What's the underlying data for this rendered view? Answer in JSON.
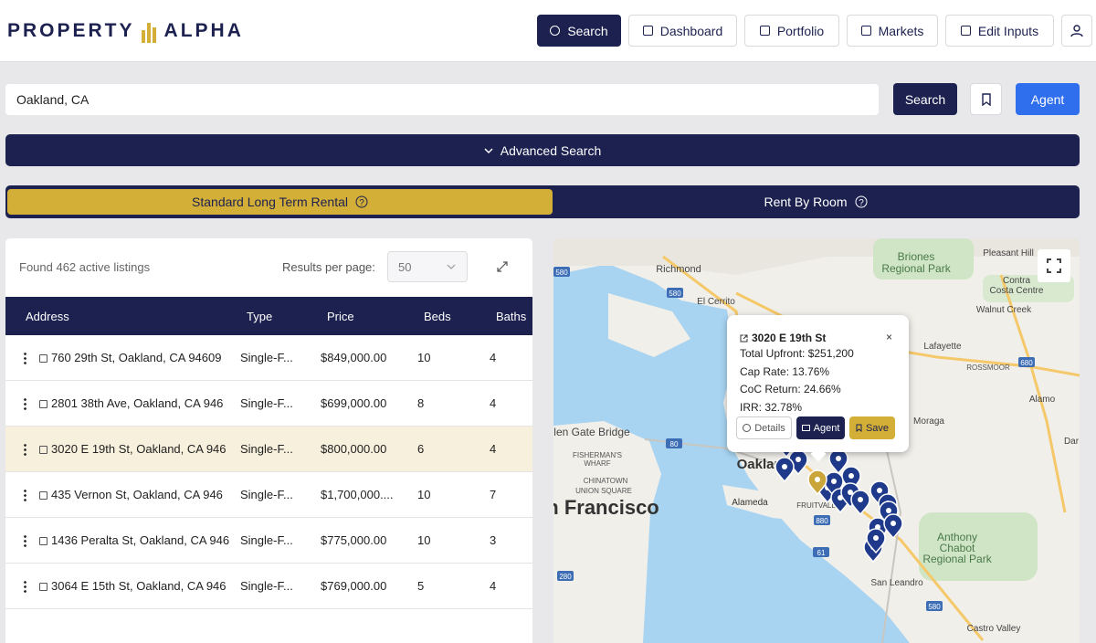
{
  "header": {
    "logo_left": "PROPERTY",
    "logo_right": "ALPHA",
    "nav": [
      "Search",
      "Dashboard",
      "Portfolio",
      "Markets",
      "Edit Inputs"
    ]
  },
  "search": {
    "query": "Oakland, CA",
    "search_button": "Search",
    "agent_button": "Agent",
    "advanced": "Advanced Search"
  },
  "tabs": [
    "Standard Long Term Rental",
    "Rent By Room"
  ],
  "listings": {
    "summary": "Found 462 active listings",
    "per_page_label": "Results per page:",
    "per_page": 50,
    "columns": [
      "Address",
      "Type",
      "Price",
      "Beds",
      "Baths"
    ],
    "rows": [
      [
        "760 29th St, Oakland, CA 94609",
        "Single-F...",
        "$849,000.00",
        10,
        4
      ],
      [
        "2801 38th Ave, Oakland, CA 946",
        "Single-F...",
        "$699,000.00",
        8,
        4
      ],
      [
        "3020 E 19th St, Oakland, CA 946",
        "Single-F...",
        "$800,000.00",
        6,
        4
      ],
      [
        "435 Vernon St, Oakland, CA 946",
        "Single-F...",
        "$1,700,000....",
        10,
        7
      ],
      [
        "1436 Peralta St, Oakland, CA 946",
        "Single-F...",
        "$775,000.00",
        10,
        3
      ],
      [
        "3064 E 15th St, Oakland, CA 946",
        "Single-F...",
        "$769,000.00",
        5,
        4
      ]
    ]
  },
  "map": {
    "labels": [
      "Richmond",
      "El Cerrito",
      "Briones",
      "Regional Park",
      "Pleasant Hill",
      "Contra",
      "Costa Centre",
      "Walnut Creek",
      "Lafayette",
      "ROSSMOOR",
      "Alamo",
      "Moraga",
      "len Gate Bridge",
      "FISHERMAN'S",
      "WHARF",
      "CHINATOWN",
      "UNION SQUARE",
      "n Francisco",
      "Oaklar",
      "Alameda",
      "FRUITVALE",
      "Anthony",
      "Chabot",
      "Regional Park",
      "San Leandro",
      "Castro Valley",
      "Dar"
    ],
    "shields": [
      "580",
      "580",
      "80",
      "880",
      "280",
      "61",
      "580",
      "680"
    ],
    "popup": {
      "title": "3020 E 19th St",
      "lines": [
        "Total Upfront: $251,200",
        "Cap Rate: 13.76%",
        "CoC Return: 24.66%",
        "IRR: 32.78%"
      ],
      "buttons": [
        "Details",
        "Agent",
        "Save"
      ]
    }
  }
}
